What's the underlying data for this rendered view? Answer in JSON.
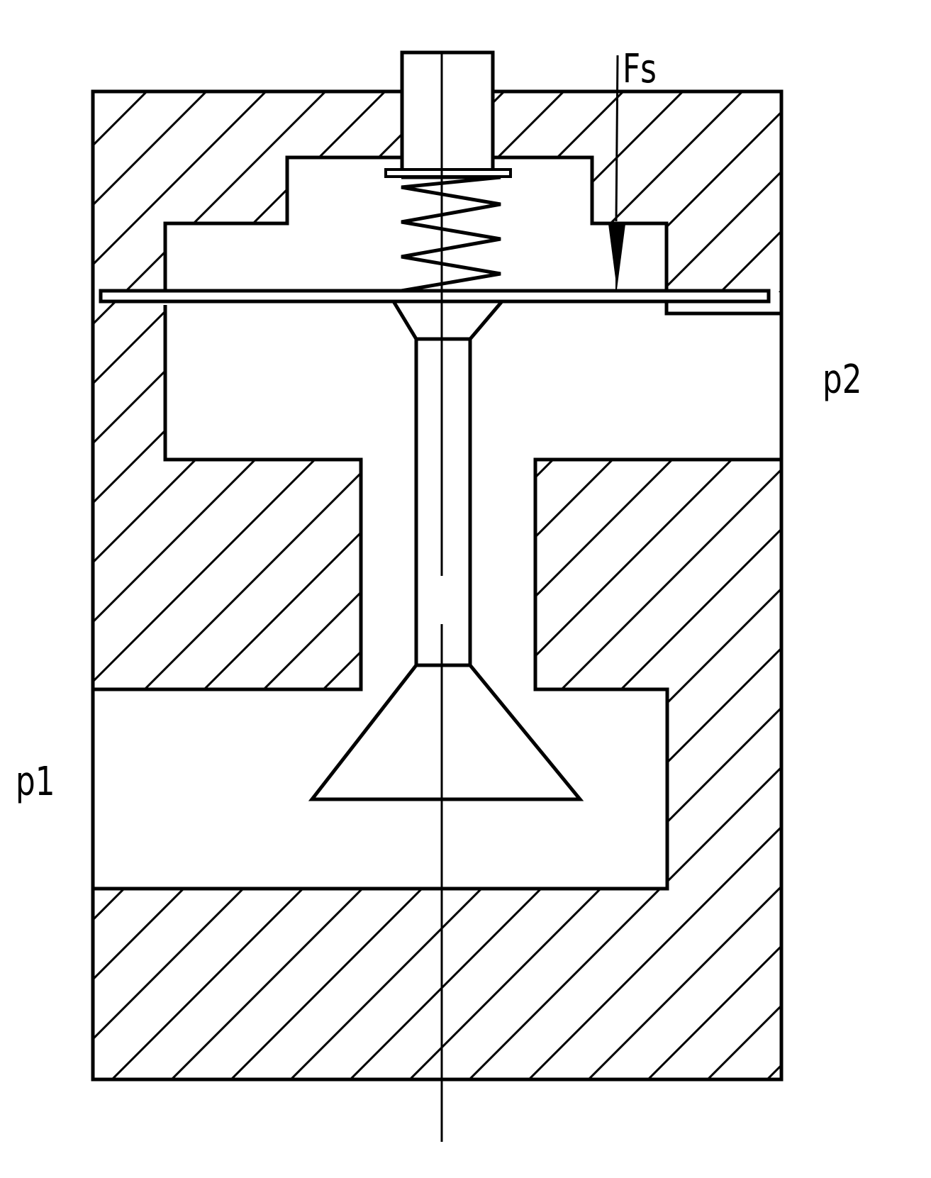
{
  "labels": {
    "force": "Fs",
    "outlet_pressure": "p2",
    "inlet_pressure": "p1"
  },
  "colors": {
    "line": "#000000",
    "background": "#ffffff"
  }
}
